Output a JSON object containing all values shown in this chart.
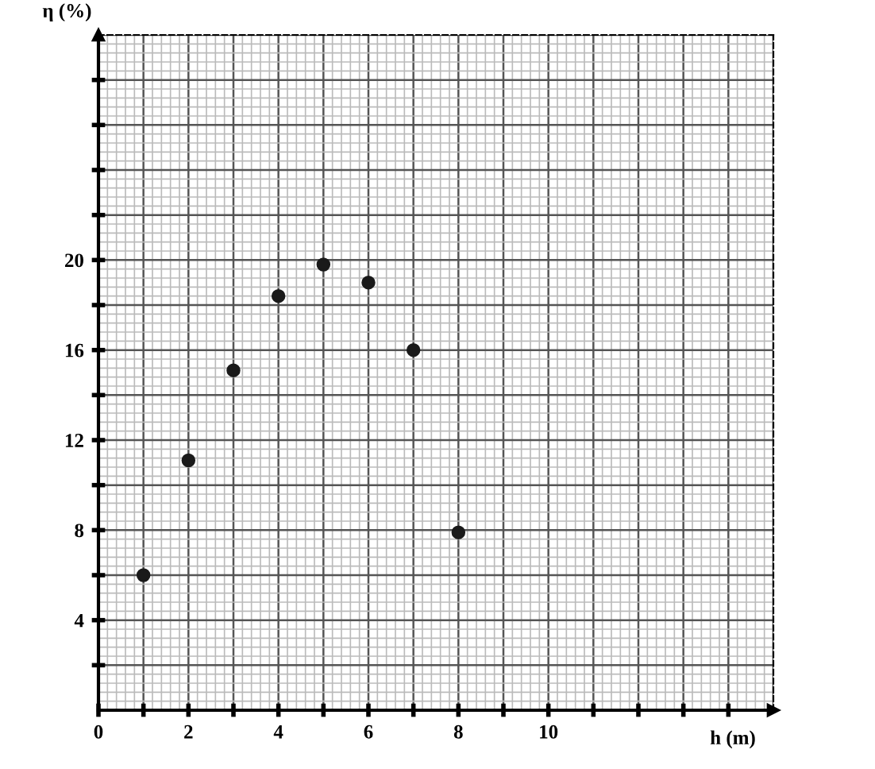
{
  "chart_data": {
    "type": "scatter",
    "xlabel": "h (m)",
    "ylabel": "η (%)",
    "x": [
      1,
      2,
      3,
      4,
      5,
      6,
      7,
      8
    ],
    "values": [
      6,
      11.1,
      15.1,
      18.4,
      19.8,
      19.0,
      16.0,
      7.9
    ],
    "color": "#1a1a1a",
    "marker": "circle",
    "xlim": [
      0,
      15
    ],
    "ylim": [
      0,
      30
    ],
    "xticks": [
      {
        "value": 0,
        "label": "0"
      },
      {
        "value": 1,
        "label": null
      },
      2,
      {
        "value": 3,
        "label": null
      },
      4,
      {
        "value": 5,
        "label": null
      },
      6,
      {
        "value": 7,
        "label": null
      },
      8,
      {
        "value": 9,
        "label": null
      },
      10,
      {
        "value": 11,
        "label": null
      },
      {
        "value": 12,
        "label": null
      },
      {
        "value": 13,
        "label": null
      },
      {
        "value": 14,
        "label": null
      }
    ],
    "yticks": [
      {
        "value": 2,
        "label": null
      },
      4,
      {
        "value": 6,
        "label": null
      },
      8,
      {
        "value": 10,
        "label": null
      },
      12,
      {
        "value": 14,
        "label": null
      },
      16,
      {
        "value": 18,
        "label": null
      },
      20,
      {
        "value": 22,
        "label": null
      },
      {
        "value": 24,
        "label": null
      },
      {
        "value": 26,
        "label": null
      },
      {
        "value": 28,
        "label": null
      }
    ],
    "grid": true
  }
}
